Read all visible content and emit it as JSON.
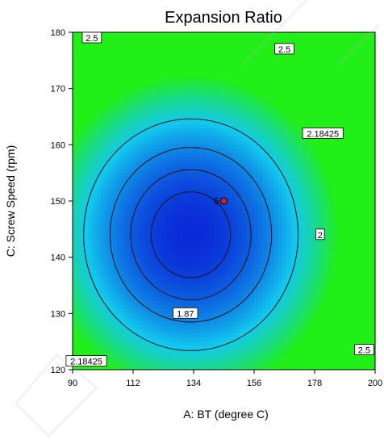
{
  "chart_data": {
    "type": "contour",
    "title": "Expansion Ratio",
    "xlabel": "A: BT (degree C)",
    "ylabel": "C: Screw Speed (rpm)",
    "xlim": [
      90,
      200
    ],
    "ylim": [
      120,
      180
    ],
    "xticks": [
      "90",
      "112",
      "134",
      "156",
      "178",
      "200"
    ],
    "yticks": [
      "120",
      "130",
      "140",
      "150",
      "160",
      "170",
      "180"
    ],
    "contour_levels": [
      {
        "level": "1.87",
        "labels": [
          {
            "x": 131,
            "y": 130
          }
        ]
      },
      {
        "level": "2",
        "labels": [
          {
            "x": 180,
            "y": 144
          }
        ]
      },
      {
        "level": "2.18425",
        "labels": [
          {
            "x": 181,
            "y": 162
          },
          {
            "x": 95,
            "y": 121.5
          }
        ]
      },
      {
        "level": "2.5",
        "labels": [
          {
            "x": 97,
            "y": 179
          },
          {
            "x": 167,
            "y": 177
          },
          {
            "x": 196,
            "y": 123.5
          }
        ]
      }
    ],
    "design_point": {
      "label": "6",
      "x": 145,
      "y": 150
    },
    "colors": {
      "low": "#0a2ad8",
      "high": "#22ee18",
      "point": "#d42020",
      "contour": "#111111"
    }
  }
}
